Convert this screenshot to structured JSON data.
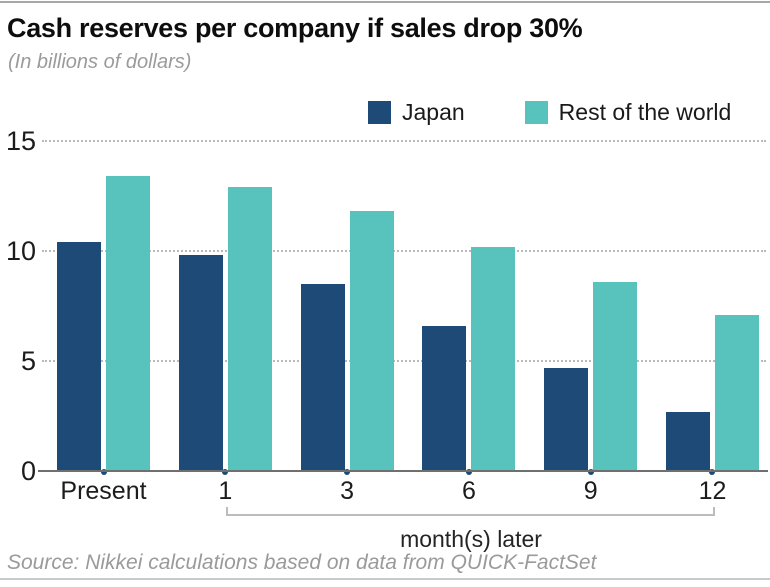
{
  "chart_data": {
    "type": "bar",
    "title": "Cash reserves per company if sales drop 30%",
    "subtitle": "(In billions of dollars)",
    "categories": [
      "Present",
      "1",
      "3",
      "6",
      "9",
      "12"
    ],
    "series": [
      {
        "name": "Japan",
        "color": "#1d4a77",
        "values": [
          10.4,
          9.8,
          8.5,
          6.6,
          4.7,
          2.7
        ]
      },
      {
        "name": "Rest of the world",
        "color": "#58c3bc",
        "values": [
          13.4,
          12.9,
          11.8,
          10.2,
          8.6,
          7.1
        ]
      }
    ],
    "xlabel": "month(s) later",
    "xlabel_bracket_span": [
      "1",
      "12"
    ],
    "ylabel": "",
    "ylim": [
      0,
      15
    ],
    "yticks": [
      0,
      5,
      10,
      15
    ],
    "grid": "dotted horizontal",
    "legend_position": "top-right",
    "source": "Source: Nikkei calculations based on data from QUICK-FactSet",
    "colors": {
      "axis": "#6f6f6f",
      "gridline": "#b9b9b9",
      "tick_dot": "#1d4a77",
      "bracket": "#bcbcbc",
      "title_text": "#0d0d0d",
      "subtitle_text": "#9b9b9b",
      "source_text": "#9a9a9a"
    }
  }
}
